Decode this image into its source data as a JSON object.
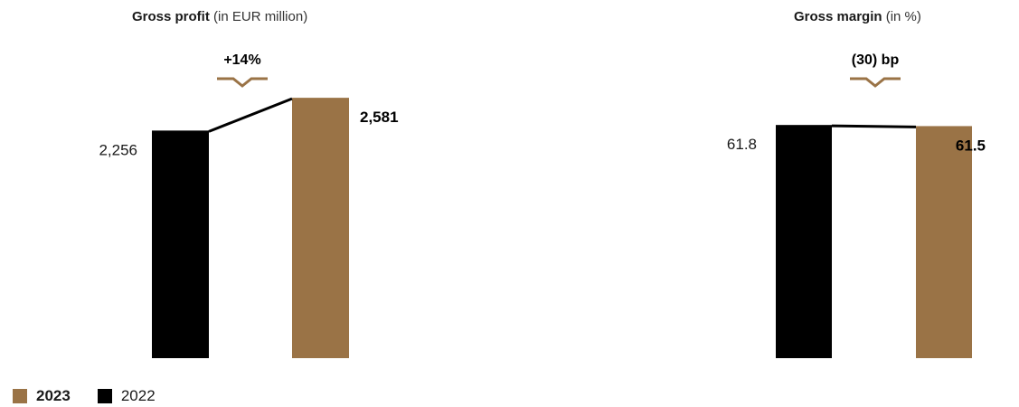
{
  "colors": {
    "year2023": "#9a7346",
    "year2022": "#000000"
  },
  "legend": [
    {
      "label": "2023",
      "color": "#9a7346",
      "bold": true
    },
    {
      "label": "2022",
      "color": "#000000",
      "bold": false
    }
  ],
  "chart_data": [
    {
      "type": "bar",
      "title": "Gross profit",
      "subtitle": "(in EUR million)",
      "categories": [
        "2022",
        "2023"
      ],
      "values": [
        2256,
        2581
      ],
      "value_labels": [
        "2,256",
        "2,581"
      ],
      "change_label": "+14%",
      "ylim": [
        0,
        2600
      ],
      "grid": false
    },
    {
      "type": "bar",
      "title": "Gross margin",
      "subtitle": "(in %)",
      "categories": [
        "2022",
        "2023"
      ],
      "values": [
        61.8,
        61.5
      ],
      "value_labels": [
        "61.8",
        "61.5"
      ],
      "change_label": "(30) bp",
      "ylim": [
        0,
        62.8
      ],
      "grid": false
    }
  ]
}
